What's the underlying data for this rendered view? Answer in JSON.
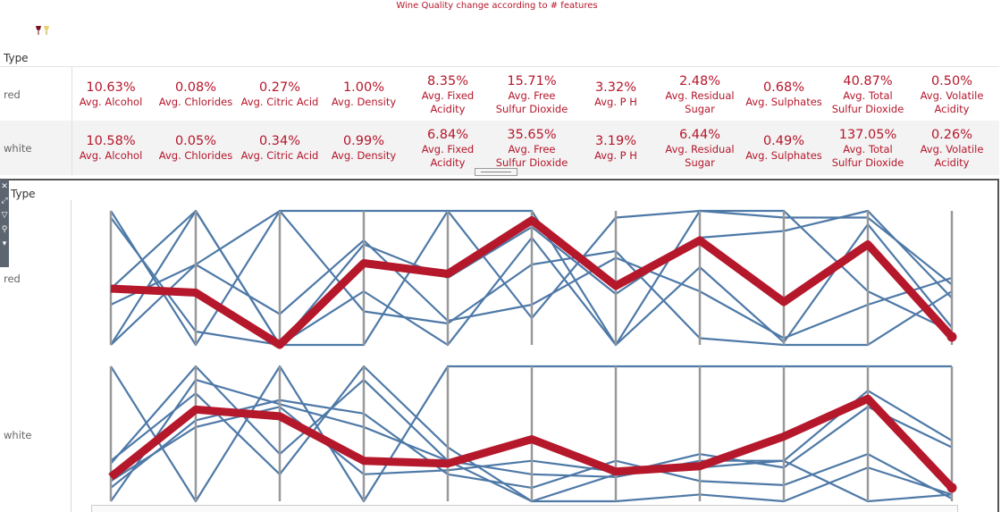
{
  "title": "Wine Quality change according to # features",
  "type_header": "Type",
  "colors": {
    "accent": "#b5172b",
    "line": "#4e79a7",
    "axis": "#999999"
  },
  "icons": {
    "logo": "wine-glasses-icon"
  },
  "toolbar_icons": [
    "close-icon",
    "expand-icon",
    "filter-icon",
    "pin-icon",
    "more-icon"
  ],
  "table": {
    "features": [
      "Avg. Alcohol",
      "Avg. Chlorides",
      "Avg. Citric Acid",
      "Avg. Density",
      "Avg. Fixed\nAcidity",
      "Avg. Free\nSulfur Dioxide",
      "Avg. P H",
      "Avg. Residual\nSugar",
      "Avg. Sulphates",
      "Avg. Total\nSulfur Dioxide",
      "Avg. Volatile\nAcidity"
    ],
    "rows": [
      {
        "type": "red",
        "values": [
          "10.63%",
          "0.08%",
          "0.27%",
          "1.00%",
          "8.35%",
          "15.71%",
          "3.32%",
          "2.48%",
          "0.68%",
          "40.87%",
          "0.50%"
        ]
      },
      {
        "type": "white",
        "values": [
          "10.58%",
          "0.05%",
          "0.34%",
          "0.99%",
          "6.84%",
          "35.65%",
          "3.19%",
          "6.44%",
          "0.49%",
          "137.05%",
          "0.26%"
        ]
      }
    ]
  },
  "chart_data": {
    "type": "line",
    "title": "",
    "categories": [
      "Avg. Alcohol",
      "Avg. Chlorides",
      "Avg. Citric Acid",
      "Avg. Density",
      "Avg. Fixed Acidity",
      "Avg. Free Sulfur Dioxide",
      "Avg. P H",
      "Avg. Residual Sugar",
      "Avg. Sulphates",
      "Avg. Total Sulfur Dioxide",
      "Avg. Volatile Acidity"
    ],
    "ylim": [
      0,
      1
    ],
    "panes": [
      {
        "type": "red",
        "highlight": [
          0.42,
          0.39,
          0.0,
          0.61,
          0.53,
          0.93,
          0.44,
          0.78,
          0.32,
          0.75,
          0.06
        ],
        "lines": [
          [
            1,
            0,
            1,
            1,
            1,
            0.2,
            0.95,
            1,
            0.95,
            0.95,
            0.45
          ],
          [
            0.95,
            0.1,
            0,
            0.75,
            0.5,
            0.88,
            0.38,
            0.8,
            0.85,
            1,
            0.35
          ],
          [
            0,
            0.6,
            0.23,
            0.78,
            0.18,
            0.3,
            0.65,
            0.4,
            0.05,
            0.3,
            0.5
          ],
          [
            0.42,
            1,
            0,
            0.4,
            0,
            0.8,
            0,
            0.58,
            0.02,
            0.9,
            0.13
          ],
          [
            0.3,
            0.6,
            1,
            0.25,
            0.16,
            0.6,
            0.7,
            0.05,
            0,
            0,
            0.4
          ],
          [
            0,
            1,
            0,
            0,
            1,
            1,
            0,
            1,
            1,
            0.4,
            0.1
          ]
        ]
      },
      {
        "type": "white",
        "highlight": [
          0.18,
          0.68,
          0.63,
          0.3,
          0.28,
          0.46,
          0.22,
          0.26,
          0.48,
          0.76,
          0.1
        ],
        "lines": [
          [
            1,
            0,
            1,
            0,
            1,
            1,
            1,
            1,
            1,
            1,
            1
          ],
          [
            0.3,
            0.8,
            0.2,
            1,
            0.4,
            0,
            0.2,
            0.35,
            0.25,
            0.7,
            0.4
          ],
          [
            0,
            0.9,
            0.72,
            0.55,
            0.3,
            0.2,
            0.18,
            0.3,
            0.3,
            0.82,
            0.45
          ],
          [
            0.15,
            0.55,
            0.7,
            0.2,
            0.23,
            0.3,
            0.22,
            0.25,
            0.3,
            0,
            0.05
          ],
          [
            0.28,
            1,
            0.35,
            0.9,
            0.3,
            0,
            0,
            0.05,
            0,
            0.25,
            0.05
          ],
          [
            0.1,
            0.6,
            0.75,
            0.65,
            0.2,
            0.1,
            0.3,
            0.15,
            0.12,
            0.35,
            0.02
          ]
        ]
      }
    ]
  }
}
